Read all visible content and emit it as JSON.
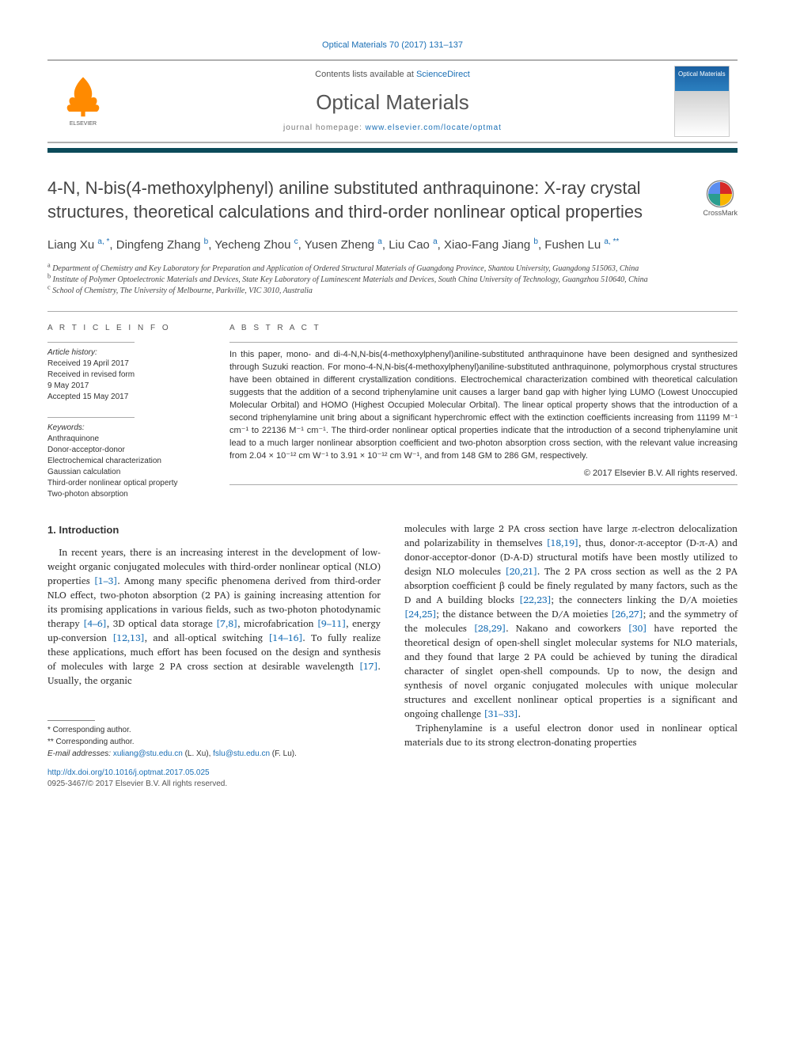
{
  "citation": "Optical Materials 70 (2017) 131–137",
  "header": {
    "contents_prefix": "Contents lists available at ",
    "contents_link": "ScienceDirect",
    "journal": "Optical Materials",
    "hp_prefix": "journal homepage: ",
    "hp_link": "www.elsevier.com/locate/optmat",
    "publisher": "ELSEVIER",
    "cover_label": "Optical Materials"
  },
  "crossmark": "CrossMark",
  "title": "4-N, N-bis(4-methoxylphenyl) aniline substituted anthraquinone: X-ray crystal structures, theoretical calculations and third-order nonlinear optical properties",
  "authors_html": "Liang Xu <sup>a, *</sup>, Dingfeng Zhang <sup>b</sup>, Yecheng Zhou <sup>c</sup>, Yusen Zheng <sup>a</sup>, Liu Cao <sup>a</sup>, Xiao-Fang Jiang <sup>b</sup>, Fushen Lu <sup>a, **</sup>",
  "affiliations": {
    "a": "Department of Chemistry and Key Laboratory for Preparation and Application of Ordered Structural Materials of Guangdong Province, Shantou University, Guangdong 515063, China",
    "b": "Institute of Polymer Optoelectronic Materials and Devices, State Key Laboratory of Luminescent Materials and Devices, South China University of Technology, Guangzhou 510640, China",
    "c": "School of Chemistry, The University of Melbourne, Parkville, VIC 3010, Australia"
  },
  "article_info": {
    "heading": "A R T I C L E   I N F O",
    "hist_label": "Article history:",
    "received": "Received 19 April 2017",
    "revised": "Received in revised form",
    "revised_date": "9 May 2017",
    "accepted": "Accepted 15 May 2017",
    "kw_label": "Keywords:",
    "keywords": [
      "Anthraquinone",
      "Donor-acceptor-donor",
      "Electrochemical characterization",
      "Gaussian calculation",
      "Third-order nonlinear optical property",
      "Two-photon absorption"
    ]
  },
  "abstract": {
    "heading": "A B S T R A C T",
    "text": "In this paper, mono- and di-4-N,N-bis(4-methoxylphenyl)aniline-substituted anthraquinone have been designed and synthesized through Suzuki reaction. For mono-4-N,N-bis(4-methoxylphenyl)aniline-substituted anthraquinone, polymorphous crystal structures have been obtained in different crystallization conditions. Electrochemical characterization combined with theoretical calculation suggests that the addition of a second triphenylamine unit causes a larger band gap with higher lying LUMO (Lowest Unoccupied Molecular Orbital) and HOMO (Highest Occupied Molecular Orbital). The linear optical property shows that the introduction of a second triphenylamine unit bring about a significant hyperchromic effect with the extinction coefficients increasing from 11199 M⁻¹ cm⁻¹ to 22136 M⁻¹ cm⁻¹. The third-order nonlinear optical properties indicate that the introduction of a second triphenylamine unit lead to a much larger nonlinear absorption coefficient and two-photon absorption cross section, with the relevant value increasing from 2.04 × 10⁻¹² cm W⁻¹ to 3.91 × 10⁻¹² cm W⁻¹, and from 148 GM to 286 GM, respectively.",
    "copyright": "© 2017 Elsevier B.V. All rights reserved."
  },
  "intro": {
    "heading": "1. Introduction",
    "col1": "In recent years, there is an increasing interest in the development of low-weight organic conjugated molecules with third-order nonlinear optical (NLO) properties <span class=\"ref\">[1–3]</span>. Among many specific phenomena derived from third-order NLO effect, two-photon absorption (2 PA) is gaining increasing attention for its promising applications in various fields, such as two-photon photodynamic therapy <span class=\"ref\">[4–6]</span>, 3D optical data storage <span class=\"ref\">[7,8]</span>, microfabrication <span class=\"ref\">[9–11]</span>, energy up-conversion <span class=\"ref\">[12,13]</span>, and all-optical switching <span class=\"ref\">[14–16]</span>. To fully realize these applications, much effort has been focused on the design and synthesis of molecules with large 2 PA cross section at desirable wavelength <span class=\"ref\">[17]</span>. Usually, the organic",
    "col2_p1": "molecules with large 2 PA cross section have large π-electron delocalization and polarizability in themselves <span class=\"ref\">[18,19]</span>, thus, donor-π-acceptor (D-π-A) and donor-acceptor-donor (D-A-D) structural motifs have been mostly utilized to design NLO molecules <span class=\"ref\">[20,21]</span>. The 2 PA cross section as well as the 2 PA absorption coefficient β could be finely regulated by many factors, such as the D and A building blocks <span class=\"ref\">[22,23]</span>; the connecters linking the D/A moieties <span class=\"ref\">[24,25]</span>; the distance between the D/A moieties <span class=\"ref\">[26,27]</span>; and the symmetry of the molecules <span class=\"ref\">[28,29]</span>. Nakano and coworkers <span class=\"ref\">[30]</span> have reported the theoretical design of open-shell singlet molecular systems for NLO materials, and they found that large 2 PA could be achieved by tuning the diradical character of singlet open-shell compounds. Up to now, the design and synthesis of novel organic conjugated molecules with unique molecular structures and excellent nonlinear optical properties is a significant and ongoing challenge <span class=\"ref\">[31–33]</span>.",
    "col2_p2": "Triphenylamine is a useful electron donor used in nonlinear optical materials due to its strong electron-donating properties"
  },
  "corr": {
    "star1": "* Corresponding author.",
    "star2": "** Corresponding author.",
    "em_label": "E-mail addresses:",
    "em1": "xuliang@stu.edu.cn",
    "em1_who": "(L. Xu),",
    "em2": "fslu@stu.edu.cn",
    "em2_who": "(F. Lu)."
  },
  "footer": {
    "doi": "http://dx.doi.org/10.1016/j.optmat.2017.05.025",
    "issn": "0925-3467/© 2017 Elsevier B.V. All rights reserved."
  },
  "colors": {
    "link": "#1a6fb5",
    "accent": "#0b4b5a",
    "elsevier_orange": "#ff8a00"
  }
}
